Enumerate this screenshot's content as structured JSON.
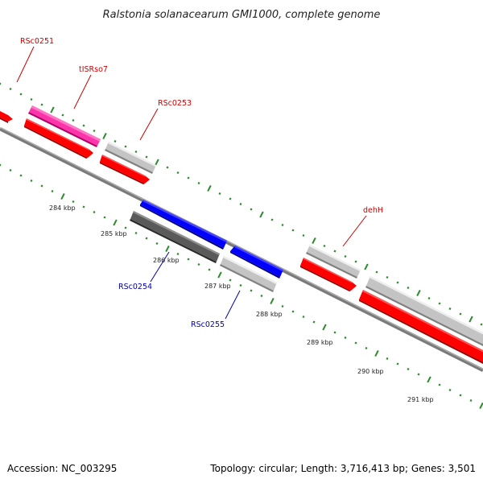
{
  "title": "Ralstonia solanacearum GMI1000, complete genome",
  "footer": {
    "accession": "Accession: NC_003295",
    "summary": "Topology: circular; Length: 3,716,413 bp; Genes: 3,501"
  },
  "colors": {
    "forward_cds": "#ff0000",
    "reverse_cds": "#0000ff",
    "trna": "#ff1493",
    "gene_gray": "#c0c0c0",
    "dark_gray": "#606060",
    "tick_green": "#2b8a2b",
    "label_red": "#cc0000",
    "label_blue": "#0000aa"
  },
  "ticks": {
    "labels": [
      "284 kbp",
      "285 kbp",
      "286 kbp",
      "287 kbp",
      "288 kbp",
      "289 kbp",
      "290 kbp",
      "291 kbp"
    ]
  },
  "labels": {
    "rsc0251": "RSc0251",
    "tisrso7": "tISRso7",
    "rsc0253": "RSc0253",
    "dehh": "dehH",
    "rsc0254": "RSc0254",
    "rsc0255": "RSc0255"
  }
}
